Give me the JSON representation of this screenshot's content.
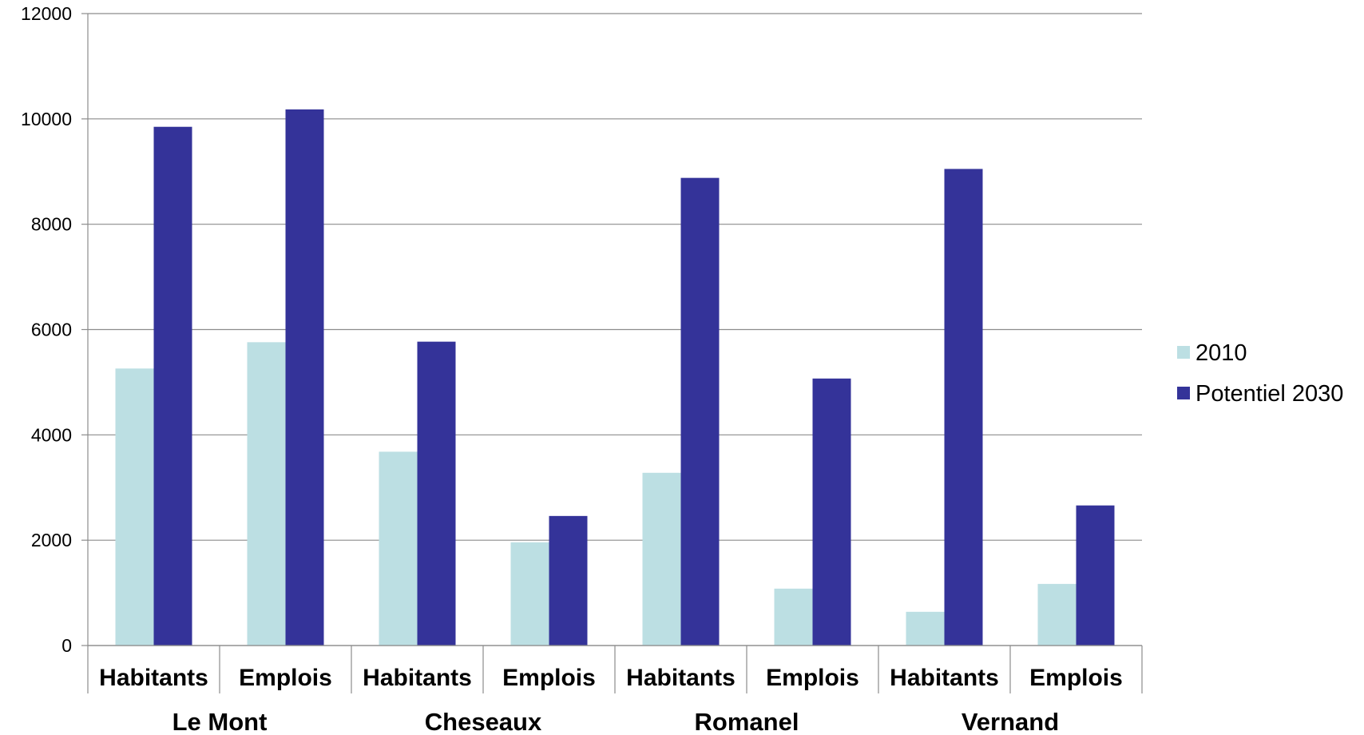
{
  "chart_data": {
    "type": "bar",
    "groups": [
      "Le Mont",
      "Cheseaux",
      "Romanel",
      "Vernand"
    ],
    "categories": [
      "Habitants",
      "Emplois",
      "Habitants",
      "Emplois",
      "Habitants",
      "Emplois",
      "Habitants",
      "Emplois"
    ],
    "series": [
      {
        "name": "2010",
        "color": "#bcdfe3",
        "values": [
          5260,
          5760,
          3680,
          1960,
          3280,
          1080,
          640,
          1170
        ]
      },
      {
        "name": "Potentiel 2030",
        "color": "#343399",
        "values": [
          9850,
          10180,
          5770,
          2460,
          8880,
          5070,
          9050,
          2660
        ]
      }
    ],
    "ylim": [
      0,
      12000
    ],
    "yticks": [
      0,
      2000,
      4000,
      6000,
      8000,
      10000,
      12000
    ],
    "ytick_labels": [
      "0",
      "2000",
      "4000",
      "6000",
      "8000",
      "10000",
      "12000"
    ],
    "grid": true,
    "legend_position": "right"
  }
}
